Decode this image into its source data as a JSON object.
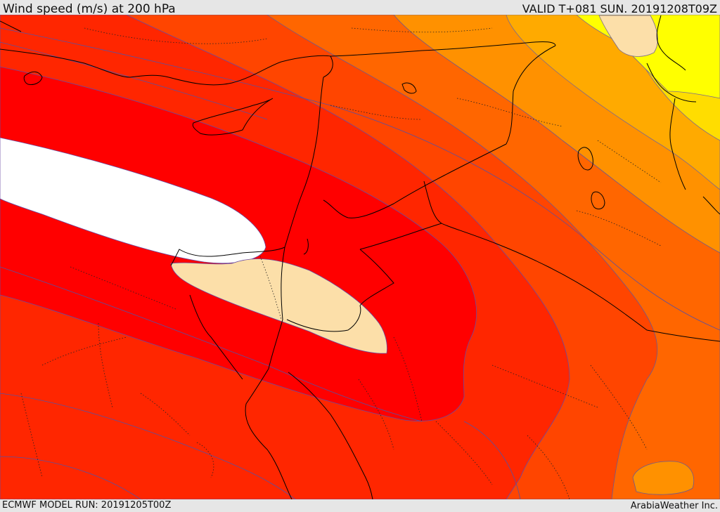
{
  "header": {
    "title": "Wind speed (m/s) at 200 hPa",
    "valid_time": "VALID T+081 SUN. 20191208T09Z"
  },
  "footer": {
    "model_run": "ECMWF MODEL RUN: 20191205T00Z",
    "credit": "ArabiaWeather Inc."
  },
  "map": {
    "field": "wind speed",
    "level": "200 hPa",
    "colors": {
      "yellow": "#ffff00",
      "yellow_orange": "#ffdd00",
      "light_orange": "#ffaa00",
      "orange": "#ff9100",
      "dark_orange": "#ff6600",
      "red_orange": "#ff4500",
      "orange_red": "#ff2600",
      "red": "#ff0000",
      "white": "#ffffff",
      "peach": "#fcdfa9",
      "contour": "#5050a0",
      "border": "#000000"
    }
  }
}
